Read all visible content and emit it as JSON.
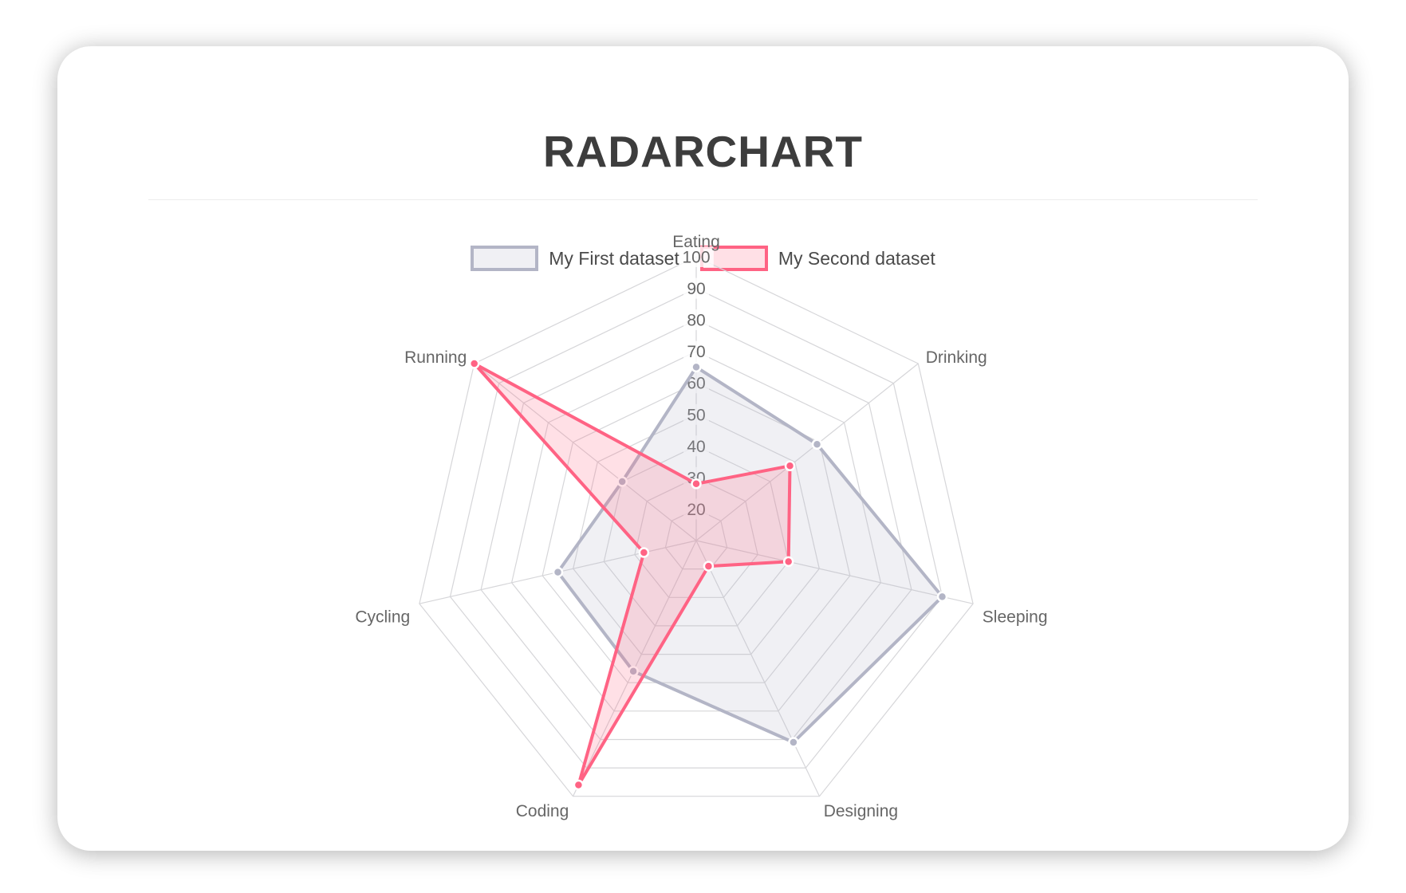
{
  "header": {
    "title": "RADARCHART"
  },
  "chart_data": {
    "type": "radar",
    "categories": [
      "Eating",
      "Drinking",
      "Sleeping",
      "Designing",
      "Coding",
      "Cycling",
      "Running"
    ],
    "series": [
      {
        "name": "My First dataset",
        "values": [
          65,
          59,
          90,
          81,
          56,
          55,
          40
        ],
        "color": "#b3b5c6",
        "fill": "rgba(179,181,198,0.2)",
        "point_border": "#ffffff"
      },
      {
        "name": "My Second dataset",
        "values": [
          28,
          48,
          40,
          19,
          96,
          27,
          100
        ],
        "color": "#ff6384",
        "fill": "rgba(255,99,132,0.2)",
        "point_border": "#ffffff"
      }
    ],
    "scale": {
      "min": 10,
      "max": 100,
      "tick_step": 10,
      "ticks_shown": [
        20,
        30,
        40,
        50,
        60,
        70,
        80,
        90,
        100
      ]
    },
    "grid": true,
    "legend_position": "top",
    "styles": {
      "grid_color": "#d6d6d9",
      "tick_color": "#666666",
      "point_label_color": "#666666",
      "tick_backdrop": "rgba(255,255,255,0.78)"
    }
  }
}
